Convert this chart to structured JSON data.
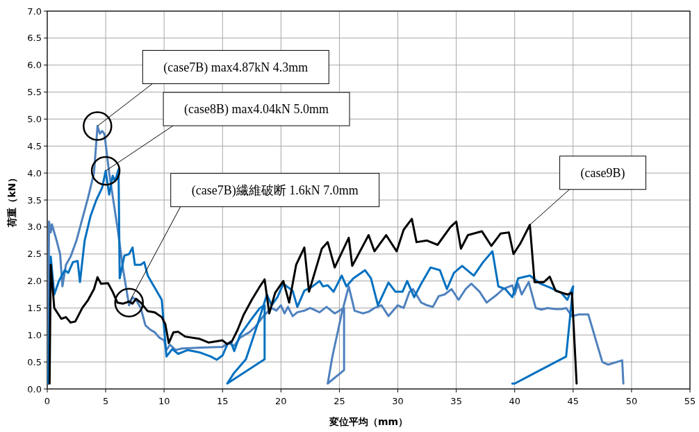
{
  "chart_data": {
    "type": "line",
    "xlabel": "変位平均（mm）",
    "ylabel": "荷重（kN）",
    "xlim": [
      0,
      55
    ],
    "ylim": [
      0,
      7
    ],
    "xticks": [
      0,
      5,
      10,
      15,
      20,
      25,
      30,
      35,
      40,
      45,
      50,
      55
    ],
    "yticks": [
      {
        "value": 0,
        "label": "0.0"
      },
      {
        "value": 0.5,
        "label": "0.5"
      },
      {
        "value": 1,
        "label": "1.0"
      },
      {
        "value": 1.5,
        "label": "1.5"
      },
      {
        "value": 2,
        "label": "2.0"
      },
      {
        "value": 2.5,
        "label": "2.5"
      },
      {
        "value": 3,
        "label": "3.0"
      },
      {
        "value": 3.5,
        "label": "3.5"
      },
      {
        "value": 4,
        "label": "4.0"
      },
      {
        "value": 4.5,
        "label": "4.5"
      },
      {
        "value": 5,
        "label": "5.0"
      },
      {
        "value": 5.5,
        "label": "5.5"
      },
      {
        "value": 6,
        "label": "6.0"
      },
      {
        "value": 6.5,
        "label": "6.5"
      },
      {
        "value": 7,
        "label": "7.0"
      }
    ],
    "grid": true,
    "marker": "none",
    "line_style": "solid",
    "series": [
      {
        "color": "#000000",
        "x": [
          0.2,
          0.3,
          0.6,
          1.2,
          1.6,
          2.0,
          2.4,
          3.0,
          3.5,
          4.0,
          4.3,
          4.6,
          5.2,
          5.6,
          6.0,
          6.5,
          7.0,
          7.3,
          7.6,
          8.0,
          8.6,
          9.2,
          9.8,
          10.1,
          10.4,
          10.8,
          11.2,
          11.8,
          13.0,
          13.8,
          15.0,
          15.4,
          15.8,
          16.3,
          16.8,
          17.5,
          18.2,
          18.6,
          19.0,
          19.5,
          20.2,
          20.7,
          21.3,
          22.0,
          22.4,
          23.5,
          24.0,
          24.6,
          25.8,
          26.1,
          27.5,
          28.0,
          29.0,
          29.9,
          30.5,
          31.2,
          31.6,
          32.5,
          33.4,
          34.5,
          35.0,
          35.4,
          36.0,
          37.2,
          38.0,
          38.8,
          39.5,
          39.9,
          40.5,
          41.3,
          41.7,
          42.5,
          43.0,
          43.5,
          44.5,
          44.9,
          45.3
        ],
        "values": [
          0.1,
          2.3,
          1.5,
          1.3,
          1.33,
          1.23,
          1.25,
          1.5,
          1.65,
          1.85,
          2.07,
          1.95,
          1.96,
          1.8,
          1.6,
          1.58,
          1.62,
          1.58,
          1.67,
          1.6,
          1.44,
          1.42,
          1.33,
          1.2,
          0.85,
          1.05,
          1.06,
          0.97,
          0.93,
          0.86,
          0.9,
          0.83,
          0.88,
          1.1,
          1.37,
          1.65,
          1.9,
          2.03,
          1.4,
          1.78,
          2.0,
          1.6,
          2.3,
          2.62,
          1.8,
          2.6,
          2.72,
          2.25,
          2.8,
          2.28,
          2.85,
          2.55,
          2.85,
          2.55,
          2.95,
          3.15,
          2.72,
          2.75,
          2.67,
          3.0,
          3.1,
          2.6,
          2.85,
          2.92,
          2.65,
          2.88,
          2.9,
          2.5,
          2.7,
          3.04,
          1.98,
          1.98,
          2.08,
          1.82,
          1.75,
          1.78,
          0.1
        ]
      },
      {
        "color": "#0070c0",
        "x": [
          0.1,
          0.3,
          0.6,
          1.0,
          1.5,
          1.8,
          2.2,
          2.6,
          2.8,
          3.2,
          3.7,
          4.2,
          4.7,
          5.0,
          5.3,
          5.6,
          5.8,
          6.1,
          6.2,
          6.6,
          7.0,
          7.3,
          7.5,
          8.0,
          8.3,
          8.6,
          9.0,
          9.4,
          9.8,
          10.2,
          10.7,
          11.2,
          12.0,
          13.0,
          14.0,
          14.5,
          15.0,
          15.4,
          15.7,
          16.0,
          16.5,
          17.5,
          18.2,
          18.6,
          18.6,
          15.4,
          16.0,
          17.0,
          18.0,
          18.8,
          19.2,
          19.7,
          20.2,
          20.5,
          21.0,
          21.4,
          22.0,
          22.7,
          23.3,
          23.6,
          24.0,
          24.5,
          25.2,
          25.6,
          26.2,
          27.2,
          27.7,
          28.3,
          29.2,
          29.8,
          30.4,
          30.8,
          31.4,
          32.0,
          32.8,
          33.6,
          34.2,
          34.8,
          35.5,
          36.5,
          37.3,
          38.1,
          38.6,
          39.2,
          39.8,
          40.3,
          41.3,
          42.2,
          43.0,
          44.0,
          44.5,
          45.0,
          44.4,
          40.0,
          39.8
        ],
        "values": [
          0.1,
          2.45,
          1.75,
          2.0,
          2.2,
          2.15,
          2.35,
          2.37,
          1.98,
          2.75,
          3.2,
          3.5,
          3.73,
          4.04,
          3.6,
          3.95,
          3.85,
          4.07,
          2.05,
          2.47,
          2.5,
          2.62,
          2.3,
          2.3,
          2.35,
          2.1,
          1.95,
          1.8,
          1.65,
          0.6,
          0.74,
          0.65,
          0.72,
          0.68,
          0.6,
          0.54,
          0.62,
          0.82,
          0.88,
          0.7,
          1.0,
          1.3,
          1.5,
          1.55,
          0.55,
          0.1,
          0.3,
          0.55,
          1.2,
          1.75,
          1.55,
          1.7,
          1.95,
          1.9,
          1.82,
          1.52,
          1.82,
          1.9,
          2.0,
          1.9,
          1.92,
          1.8,
          2.1,
          1.9,
          2.05,
          2.2,
          2.05,
          1.55,
          1.97,
          1.8,
          1.8,
          2.0,
          1.7,
          1.95,
          2.25,
          2.2,
          1.85,
          2.15,
          2.28,
          2.1,
          2.35,
          2.55,
          1.9,
          1.85,
          1.7,
          2.05,
          2.1,
          1.95,
          1.88,
          1.78,
          1.65,
          1.9,
          0.6,
          0.1,
          0.1
        ]
      },
      {
        "color": "#4f81bd",
        "x": [
          0.1,
          0.15,
          0.3,
          0.4,
          0.8,
          1.1,
          1.3,
          1.6,
          2.0,
          2.5,
          3.0,
          3.5,
          4.0,
          4.3,
          4.5,
          4.7,
          4.9,
          5.3,
          6.0,
          6.5,
          7.0,
          7.3,
          7.6,
          8.0,
          8.4,
          8.8,
          9.2,
          9.6,
          10.0,
          10.2,
          10.5,
          11.0,
          11.5,
          12.5,
          13.5,
          15.0,
          15.5,
          16.0,
          16.5,
          17.3,
          17.8,
          18.5,
          19.2,
          19.6,
          20.0,
          20.3,
          20.6,
          21.0,
          21.4,
          22.0,
          22.5,
          23.3,
          23.9,
          24.6,
          25.4,
          25.4,
          24.0,
          24.4,
          25.2,
          25.8,
          26.3,
          27.0,
          27.5,
          28.0,
          28.6,
          29.2,
          30.0,
          30.5,
          31.0,
          31.3,
          32.0,
          32.5,
          33.0,
          33.5,
          34.0,
          34.6,
          35.2,
          35.8,
          36.3,
          37.0,
          37.6,
          38.5,
          39.0,
          39.8,
          40.0,
          40.3,
          40.6,
          41.2,
          41.8,
          42.3,
          42.8,
          43.5,
          44.0,
          44.4,
          44.9,
          45.5,
          46.3,
          47.5,
          48.0,
          49.2,
          49.3
        ],
        "values": [
          0.1,
          3.1,
          2.9,
          3.05,
          2.75,
          2.5,
          1.9,
          2.3,
          2.45,
          2.75,
          3.15,
          3.55,
          4.0,
          4.87,
          4.73,
          4.78,
          4.72,
          4.0,
          3.0,
          2.2,
          1.55,
          1.7,
          1.65,
          1.5,
          1.18,
          1.1,
          1.05,
          0.95,
          0.9,
          0.72,
          0.82,
          0.72,
          0.75,
          0.76,
          0.77,
          0.78,
          0.85,
          0.8,
          0.95,
          1.05,
          1.15,
          1.35,
          1.5,
          1.45,
          1.55,
          1.4,
          1.52,
          1.35,
          1.42,
          1.45,
          1.5,
          1.42,
          1.52,
          1.4,
          1.5,
          0.35,
          0.1,
          0.6,
          1.4,
          1.9,
          1.45,
          1.4,
          1.43,
          1.5,
          1.55,
          1.35,
          1.55,
          1.5,
          1.8,
          1.85,
          1.6,
          1.55,
          1.52,
          1.72,
          1.75,
          1.85,
          1.65,
          1.85,
          1.95,
          1.8,
          1.6,
          1.75,
          1.85,
          1.92,
          1.75,
          1.95,
          1.75,
          1.98,
          1.5,
          1.47,
          1.5,
          1.48,
          1.48,
          1.5,
          1.35,
          1.38,
          1.38,
          0.5,
          0.45,
          0.53,
          0.1
        ]
      }
    ],
    "annotations": [
      {
        "text": "(case7B) max4.87kN 4.3mm",
        "x": 4.3,
        "y": 4.87
      },
      {
        "text": "(case8B) max4.04kN 5.0mm",
        "x": 5.0,
        "y": 4.04
      },
      {
        "text": "(case7B)繊維破断 1.6kN 7.0mm",
        "x": 7.0,
        "y": 1.6
      },
      {
        "text": "(case9B)",
        "x": 41.3,
        "y": 3.04
      }
    ]
  }
}
